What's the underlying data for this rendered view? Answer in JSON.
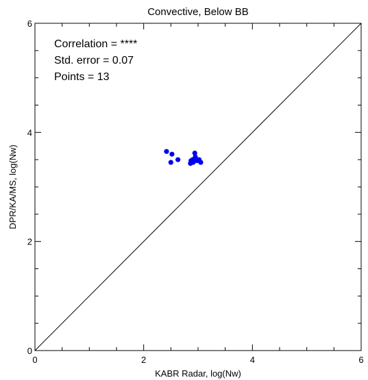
{
  "chart_data": {
    "type": "scatter",
    "title": "Convective, Below BB",
    "xlabel": "KABR Radar, log(Nw)",
    "ylabel": "DPR/KA/MS, log(Nw)",
    "xlim": [
      0,
      6
    ],
    "ylim": [
      0,
      6
    ],
    "xticks": [
      "0",
      "2",
      "4",
      "6"
    ],
    "yticks": [
      "0",
      "2",
      "4",
      "6"
    ],
    "grid": false,
    "point_color": "#0000ee",
    "reference_line": "y = x",
    "stats": [
      "Correlation = ****",
      "Std. error = 0.07",
      "Points = 13"
    ],
    "points": [
      {
        "x": 2.42,
        "y": 3.65
      },
      {
        "x": 2.52,
        "y": 3.6
      },
      {
        "x": 2.5,
        "y": 3.45
      },
      {
        "x": 2.63,
        "y": 3.5
      },
      {
        "x": 2.86,
        "y": 3.43
      },
      {
        "x": 2.87,
        "y": 3.48
      },
      {
        "x": 2.9,
        "y": 3.5
      },
      {
        "x": 2.91,
        "y": 3.45
      },
      {
        "x": 2.94,
        "y": 3.62
      },
      {
        "x": 2.95,
        "y": 3.55
      },
      {
        "x": 2.98,
        "y": 3.48
      },
      {
        "x": 3.02,
        "y": 3.5
      },
      {
        "x": 3.05,
        "y": 3.45
      }
    ]
  }
}
